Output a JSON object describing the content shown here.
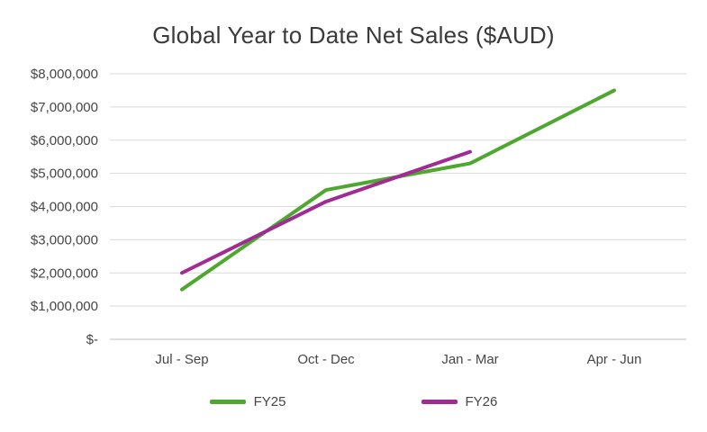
{
  "chart": {
    "title": "Global Year to Date Net Sales ($AUD)"
  },
  "chart_data": {
    "type": "line",
    "title": "Global Year to Date Net Sales ($AUD)",
    "categories": [
      "Jul - Sep",
      "Oct - Dec",
      "Jan - Mar",
      "Apr - Jun"
    ],
    "series": [
      {
        "name": "FY25",
        "color": "#4EA72E",
        "values": [
          1500000,
          4500000,
          5300000,
          7500000
        ]
      },
      {
        "name": "FY26",
        "color": "#A02B93",
        "values": [
          2000000,
          4150000,
          5650000
        ]
      }
    ],
    "xlabel": "",
    "ylabel": "",
    "ylim": [
      0,
      8000000
    ],
    "ytick_step": 1000000,
    "ytick_labels": [
      "$-",
      "$1,000,000",
      "$2,000,000",
      "$3,000,000",
      "$4,000,000",
      "$5,000,000",
      "$6,000,000",
      "$7,000,000",
      "$8,000,000"
    ],
    "grid": true,
    "legend_position": "bottom",
    "colors": {
      "grid": "#D9D9D9",
      "axis": "#BFBFBF",
      "text": "#464646",
      "title": "#3A3A3A",
      "background": "#FFFFFF"
    }
  }
}
